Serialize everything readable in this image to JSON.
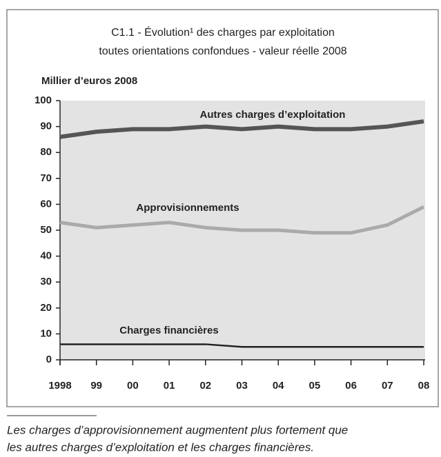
{
  "chart_data": {
    "type": "line",
    "title": "C1.1 - Évolution¹ des charges par exploitation",
    "subtitle": "toutes orientations confondues - valeur réelle 2008",
    "y_axis_label": "Millier d’euros 2008",
    "categories": [
      "1998",
      "99",
      "00",
      "01",
      "02",
      "03",
      "04",
      "05",
      "06",
      "07",
      "08"
    ],
    "series": [
      {
        "name": "Autres charges d’exploitation",
        "color": "#555555",
        "width": 6,
        "values": [
          86,
          88,
          89,
          89,
          90,
          89,
          90,
          89,
          89,
          90,
          92
        ]
      },
      {
        "name": "Approvisionnements",
        "color": "#aaaaaa",
        "width": 5,
        "values": [
          53,
          51,
          52,
          53,
          51,
          50,
          50,
          49,
          49,
          52,
          59
        ]
      },
      {
        "name": "Charges financières",
        "color": "#222222",
        "width": 2.5,
        "values": [
          6,
          6,
          6,
          6,
          6,
          5,
          5,
          5,
          5,
          5,
          5
        ]
      }
    ],
    "ylim": [
      0,
      100
    ],
    "yticks": [
      0,
      10,
      20,
      30,
      40,
      50,
      60,
      70,
      80,
      90,
      100
    ],
    "footnote": [
      "Les charges d’approvisionnement augmentent plus fortement que",
      "les autres charges d’exploitation et les charges financières."
    ]
  }
}
